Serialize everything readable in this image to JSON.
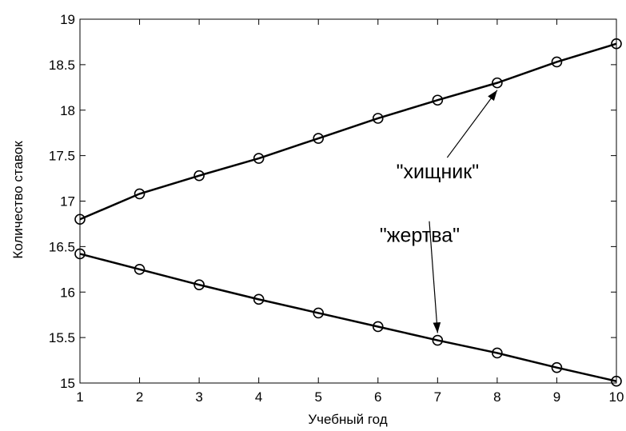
{
  "chart_data": {
    "type": "line",
    "title": "",
    "xlabel": "Учебный год",
    "ylabel": "Количество ставок",
    "xlim": [
      1,
      10
    ],
    "ylim": [
      15,
      19
    ],
    "x_ticks": [
      1,
      2,
      3,
      4,
      5,
      6,
      7,
      8,
      9,
      10
    ],
    "y_ticks": [
      15,
      15.5,
      16,
      16.5,
      17,
      17.5,
      18,
      18.5,
      19
    ],
    "grid": false,
    "legend": "none",
    "marker": "circle",
    "line_color": "#000000",
    "x": [
      1,
      2,
      3,
      4,
      5,
      6,
      7,
      8,
      9,
      10
    ],
    "series": [
      {
        "values": [
          16.8,
          17.08,
          17.28,
          17.47,
          17.69,
          17.91,
          18.11,
          18.3,
          18.53,
          18.73
        ]
      },
      {
        "values": [
          16.42,
          16.25,
          16.08,
          15.92,
          15.77,
          15.62,
          15.47,
          15.33,
          15.17,
          15.02
        ]
      }
    ],
    "annotations": [
      {
        "text": "\"хищник\"",
        "text_x": 7.0,
        "text_y": 17.25,
        "arrow_x": 8.0,
        "arrow_y": 18.22
      },
      {
        "text": "\"жертва\"",
        "text_x": 6.7,
        "text_y": 16.55,
        "arrow_x": 7.0,
        "arrow_y": 15.55
      }
    ]
  }
}
